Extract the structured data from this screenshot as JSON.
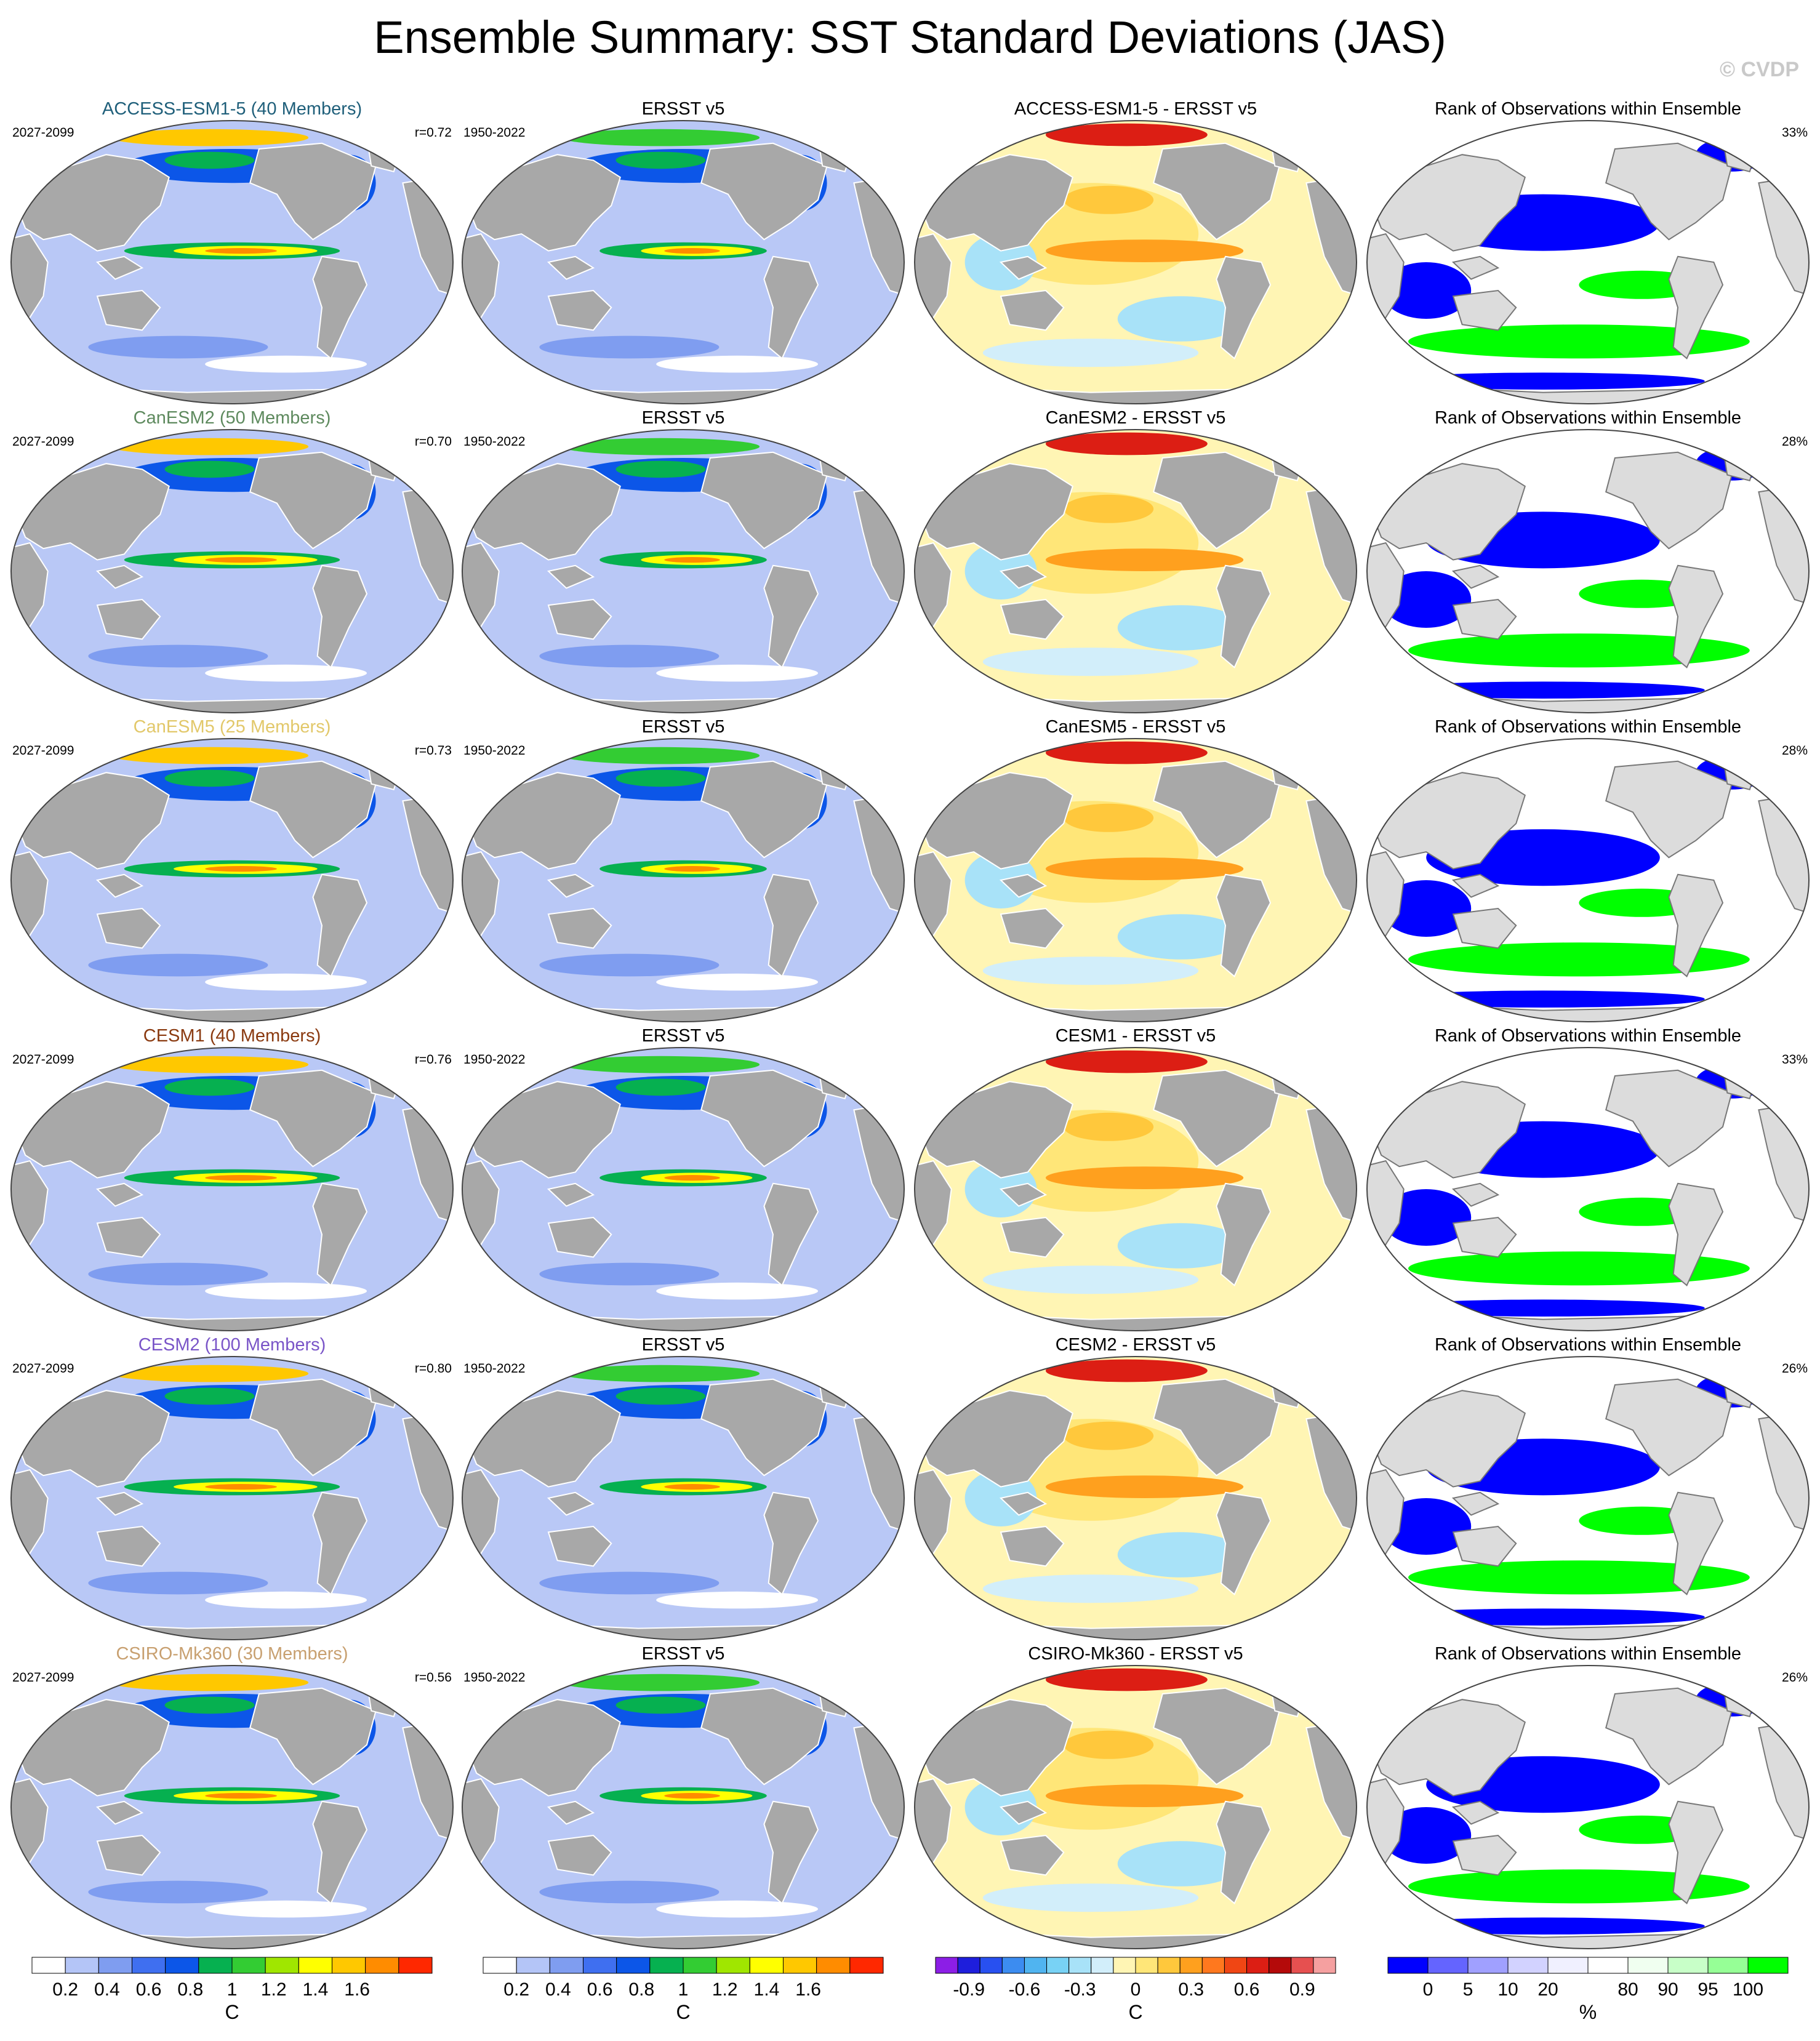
{
  "title": "Ensemble Summary: SST Standard Deviations (JAS)",
  "watermark": "© CVDP",
  "colors": {
    "land": "#a8a8a8",
    "land_light": "#dcdcdc",
    "ocean_base": "#b9c8f6"
  },
  "chart_data": {
    "type": "heatmap",
    "column_titles": [
      "",
      "ERSST v5",
      "",
      "Rank of Observations within Ensemble"
    ],
    "rows": [
      {
        "model": "ACCESS-ESM1-5 (40 Members)",
        "model_color": "#1f5f7a",
        "model_period": "2027-2099",
        "r": "r=0.72",
        "obs_period": "1950-2022",
        "diff_title": "ACCESS-ESM1-5 - ERSST v5",
        "rank_pct": "33%"
      },
      {
        "model": "CanESM2 (50 Members)",
        "model_color": "#5e8a5e",
        "model_period": "2027-2099",
        "r": "r=0.70",
        "obs_period": "1950-2022",
        "diff_title": "CanESM2 - ERSST v5",
        "rank_pct": "28%"
      },
      {
        "model": "CanESM5 (25 Members)",
        "model_color": "#e2c86a",
        "model_period": "2027-2099",
        "r": "r=0.73",
        "obs_period": "1950-2022",
        "diff_title": "CanESM5 - ERSST v5",
        "rank_pct": "28%"
      },
      {
        "model": "CESM1 (40 Members)",
        "model_color": "#8a3a10",
        "model_period": "2027-2099",
        "r": "r=0.76",
        "obs_period": "1950-2022",
        "diff_title": "CESM1 - ERSST v5",
        "rank_pct": "33%"
      },
      {
        "model": "CESM2 (100 Members)",
        "model_color": "#7a55c8",
        "model_period": "2027-2099",
        "r": "r=0.80",
        "obs_period": "1950-2022",
        "diff_title": "CESM2 - ERSST v5",
        "rank_pct": "26%"
      },
      {
        "model": "CSIRO-Mk360 (30 Members)",
        "model_color": "#c8a070",
        "model_period": "2027-2099",
        "r": "r=0.56",
        "obs_period": "1950-2022",
        "diff_title": "CSIRO-Mk360 - ERSST v5",
        "rank_pct": "26%"
      }
    ],
    "colorbars": [
      {
        "name": "sd",
        "unit": "C",
        "colors": [
          "#ffffff",
          "#b4c5f7",
          "#7f9df0",
          "#3f6ff0",
          "#0c56e8",
          "#06b050",
          "#33cc33",
          "#a0e600",
          "#ffff00",
          "#ffc800",
          "#ff8c00",
          "#ff2800"
        ],
        "labels": [
          "0.2",
          "0.4",
          "0.6",
          "0.8",
          "1",
          "1.2",
          "1.4",
          "1.6"
        ]
      },
      {
        "name": "sd_obs",
        "unit": "C",
        "colors": [
          "#ffffff",
          "#b4c5f7",
          "#7f9df0",
          "#3f6ff0",
          "#0c56e8",
          "#06b050",
          "#33cc33",
          "#a0e600",
          "#ffff00",
          "#ffc800",
          "#ff8c00",
          "#ff2800"
        ],
        "labels": [
          "0.2",
          "0.4",
          "0.6",
          "0.8",
          "1",
          "1.2",
          "1.4",
          "1.6"
        ]
      },
      {
        "name": "diff",
        "unit": "C",
        "colors": [
          "#8c1ee6",
          "#1e1edc",
          "#2850f0",
          "#3c8cf0",
          "#50b4f0",
          "#78d2f5",
          "#a8e2f8",
          "#d2eefa",
          "#fff5b4",
          "#ffe678",
          "#ffc83c",
          "#ffa01e",
          "#ff781e",
          "#f04614",
          "#dc1e14",
          "#b40a0a",
          "#e65050",
          "#f5a0a0"
        ],
        "labels": [
          "-0.9",
          "-0.6",
          "-0.3",
          "0",
          "0.3",
          "0.6",
          "0.9"
        ]
      },
      {
        "name": "rank",
        "unit": "%",
        "colors": [
          "#0000ff",
          "#6464ff",
          "#a0a0ff",
          "#d2d2ff",
          "#f0f0ff",
          "#ffffff",
          "#f0fff0",
          "#c8ffc8",
          "#96ff96",
          "#00ff00"
        ],
        "labels": [
          "0",
          "5",
          "10",
          "20",
          "80",
          "90",
          "95",
          "100"
        ]
      }
    ]
  }
}
